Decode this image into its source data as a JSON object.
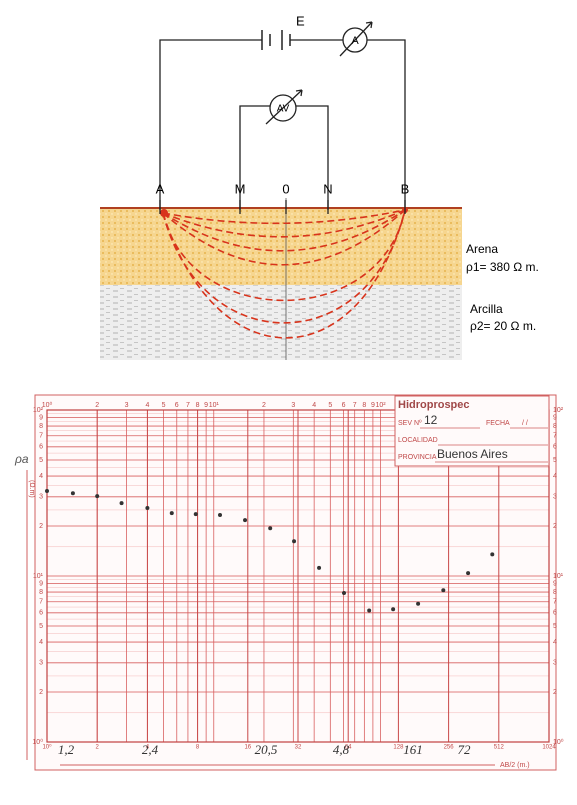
{
  "diagram": {
    "source_label": "E",
    "ammeter_label": "A",
    "voltmeter_label": "AV",
    "electrodes": [
      "A",
      "M",
      "0",
      "N",
      "B"
    ],
    "layers": [
      {
        "name": "Arena",
        "resistivity": "ρ1= 380 Ω m."
      },
      {
        "name": "Arcilla",
        "resistivity": "ρ2= 20 Ω m."
      }
    ]
  },
  "sounding": {
    "title": "Hidroprospec",
    "sev_label": "SEV Nº",
    "sev": "12",
    "date_label": "FECHA",
    "date": "/ /",
    "locality_label": "LOCALIDAD",
    "province_label": "PROVINCIA",
    "province": "Buenos Aires",
    "y_label": "ρa",
    "y_unit": "(Ω.m)",
    "x_label": "AB/2 (m.)",
    "xlim": [
      1,
      1024
    ],
    "ylim": [
      1,
      100
    ],
    "top_xticks": [
      {
        "value": 1,
        "label": "10⁰"
      },
      2,
      3,
      4,
      5,
      6,
      7,
      8,
      9,
      {
        "value": 10,
        "label": "10¹"
      },
      {
        "value": 20,
        "label": "2"
      },
      {
        "value": 30,
        "label": "3"
      },
      {
        "value": 40,
        "label": "4"
      },
      {
        "value": 50,
        "label": "5"
      },
      {
        "value": 60,
        "label": "6"
      },
      {
        "value": 70,
        "label": "7"
      },
      {
        "value": 80,
        "label": "8"
      },
      {
        "value": 90,
        "label": "9"
      },
      {
        "value": 100,
        "label": "10²"
      }
    ],
    "bottom_xticks": [
      {
        "value": 1,
        "label": "10⁰"
      },
      2,
      4,
      8,
      16,
      32,
      64,
      128,
      256,
      512,
      1024
    ],
    "yticks": [
      {
        "value": 1,
        "label": "10⁰"
      },
      2,
      3,
      4,
      5,
      6,
      7,
      8,
      9,
      {
        "value": 10,
        "label": "10¹"
      },
      {
        "value": 20,
        "label": "2"
      },
      {
        "value": 30,
        "label": "3"
      },
      {
        "value": 40,
        "label": "4"
      },
      {
        "value": 50,
        "label": "5"
      },
      {
        "value": 60,
        "label": "6"
      },
      {
        "value": 70,
        "label": "7"
      },
      {
        "value": 80,
        "label": "8"
      },
      {
        "value": 90,
        "label": "9"
      },
      {
        "value": 100,
        "label": "10²"
      }
    ],
    "x": [
      1.0,
      1.43,
      2.0,
      2.8,
      4.0,
      5.6,
      7.8,
      10.9,
      15.4,
      21.8,
      30.3,
      42.8,
      60.4,
      85.5,
      119,
      168,
      238,
      335,
      468
    ],
    "y": [
      32.5,
      31.5,
      30.3,
      27.5,
      25.7,
      23.9,
      23.6,
      23.3,
      21.7,
      19.4,
      16.2,
      11.2,
      7.9,
      6.2,
      6.3,
      6.8,
      8.2,
      10.4,
      13.5
    ],
    "notes": [
      "1,2",
      "2,4",
      "20,5",
      "4,8",
      "161",
      "72"
    ]
  }
}
